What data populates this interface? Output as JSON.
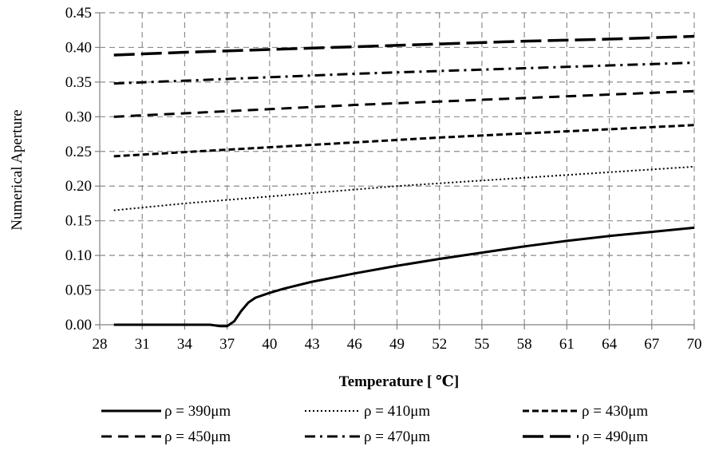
{
  "chart_data": {
    "type": "line",
    "title": "",
    "xlabel": "Temperature [ ℃]",
    "ylabel": "Numerical Aperture",
    "xlim": [
      28,
      70
    ],
    "ylim": [
      0,
      0.45
    ],
    "xticks": [
      28,
      31,
      34,
      37,
      40,
      43,
      46,
      49,
      52,
      55,
      58,
      61,
      64,
      67,
      70
    ],
    "xtick_labels": [
      "28",
      "31",
      "34",
      "37",
      "40",
      "43",
      "46",
      "49",
      "52",
      "55",
      "58",
      "61",
      "64",
      "67",
      "70"
    ],
    "yticks": [
      0,
      0.05,
      0.1,
      0.15,
      0.2,
      0.25,
      0.3,
      0.35,
      0.4,
      0.45
    ],
    "ytick_labels": [
      "0.00",
      "0.05",
      "0.10",
      "0.15",
      "0.20",
      "0.25",
      "0.30",
      "0.35",
      "0.40",
      "0.45"
    ],
    "grid": true,
    "legend_position": "bottom",
    "series": [
      {
        "name": "ρ = 390μm",
        "style": "solid",
        "x": [
          29,
          30,
          31,
          32,
          33,
          34,
          35,
          35.8,
          36.5,
          37,
          37.5,
          38,
          38.5,
          39,
          40,
          41,
          43,
          46,
          49,
          52,
          55,
          58,
          61,
          64,
          67,
          70
        ],
        "y": [
          0,
          0,
          0,
          0,
          0,
          0,
          0,
          0,
          -0.002,
          -0.002,
          0.005,
          0.02,
          0.032,
          0.039,
          0.046,
          0.052,
          0.062,
          0.074,
          0.085,
          0.095,
          0.104,
          0.113,
          0.121,
          0.128,
          0.134,
          0.14
        ]
      },
      {
        "name": "ρ = 410μm",
        "style": "dotted",
        "x": [
          29,
          31,
          34,
          37,
          40,
          43,
          46,
          49,
          52,
          55,
          58,
          61,
          64,
          67,
          70
        ],
        "y": [
          0.165,
          0.169,
          0.175,
          0.18,
          0.185,
          0.19,
          0.195,
          0.2,
          0.204,
          0.208,
          0.212,
          0.216,
          0.22,
          0.224,
          0.228
        ]
      },
      {
        "name": "ρ = 430μm",
        "style": "short-dash",
        "x": [
          29,
          34,
          40,
          46,
          52,
          58,
          64,
          70
        ],
        "y": [
          0.243,
          0.249,
          0.256,
          0.263,
          0.27,
          0.276,
          0.282,
          0.288
        ]
      },
      {
        "name": "ρ = 450μm",
        "style": "dash",
        "x": [
          29,
          34,
          40,
          46,
          52,
          58,
          64,
          70
        ],
        "y": [
          0.3,
          0.305,
          0.311,
          0.317,
          0.322,
          0.327,
          0.332,
          0.337
        ]
      },
      {
        "name": "ρ = 470μm",
        "style": "dash-dot",
        "x": [
          29,
          34,
          40,
          46,
          52,
          58,
          64,
          70
        ],
        "y": [
          0.348,
          0.352,
          0.357,
          0.362,
          0.366,
          0.37,
          0.374,
          0.378
        ]
      },
      {
        "name": "ρ = 490μm",
        "style": "long-dash",
        "x": [
          29,
          34,
          40,
          46,
          52,
          58,
          64,
          70
        ],
        "y": [
          0.389,
          0.393,
          0.397,
          0.401,
          0.405,
          0.409,
          0.412,
          0.416
        ]
      }
    ]
  }
}
